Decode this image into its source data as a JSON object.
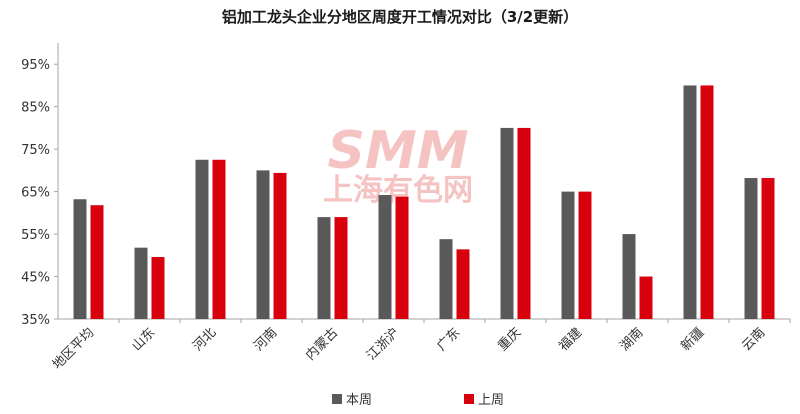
{
  "chart_data": {
    "type": "bar",
    "title": "铝加工龙头企业分地区周度开工情况对比（3/2更新）",
    "categories": [
      "地区平均",
      "山东",
      "河北",
      "河南",
      "内蒙古",
      "江浙沪",
      "广东",
      "重庆",
      "福建",
      "湖南",
      "新疆",
      "云南"
    ],
    "series": [
      {
        "name": "本周",
        "color": "#595959",
        "values": [
          63.2,
          51.8,
          72.5,
          70.0,
          59.0,
          64.2,
          53.8,
          80.0,
          65.0,
          55.0,
          90.0,
          68.2
        ]
      },
      {
        "name": "上周",
        "color": "#d9000d",
        "values": [
          61.8,
          49.6,
          72.5,
          69.4,
          59.0,
          63.8,
          51.4,
          80.0,
          65.0,
          45.0,
          90.0,
          68.2
        ]
      }
    ],
    "ylim": [
      35,
      100
    ],
    "yticks": [
      "35%",
      "45%",
      "55%",
      "65%",
      "75%",
      "85%",
      "95%"
    ],
    "ytick_values": [
      35,
      45,
      55,
      65,
      75,
      85,
      95
    ],
    "grid": false,
    "legend_position": "bottom"
  },
  "watermark": {
    "brand": "SMM",
    "text": "上海有色网"
  }
}
